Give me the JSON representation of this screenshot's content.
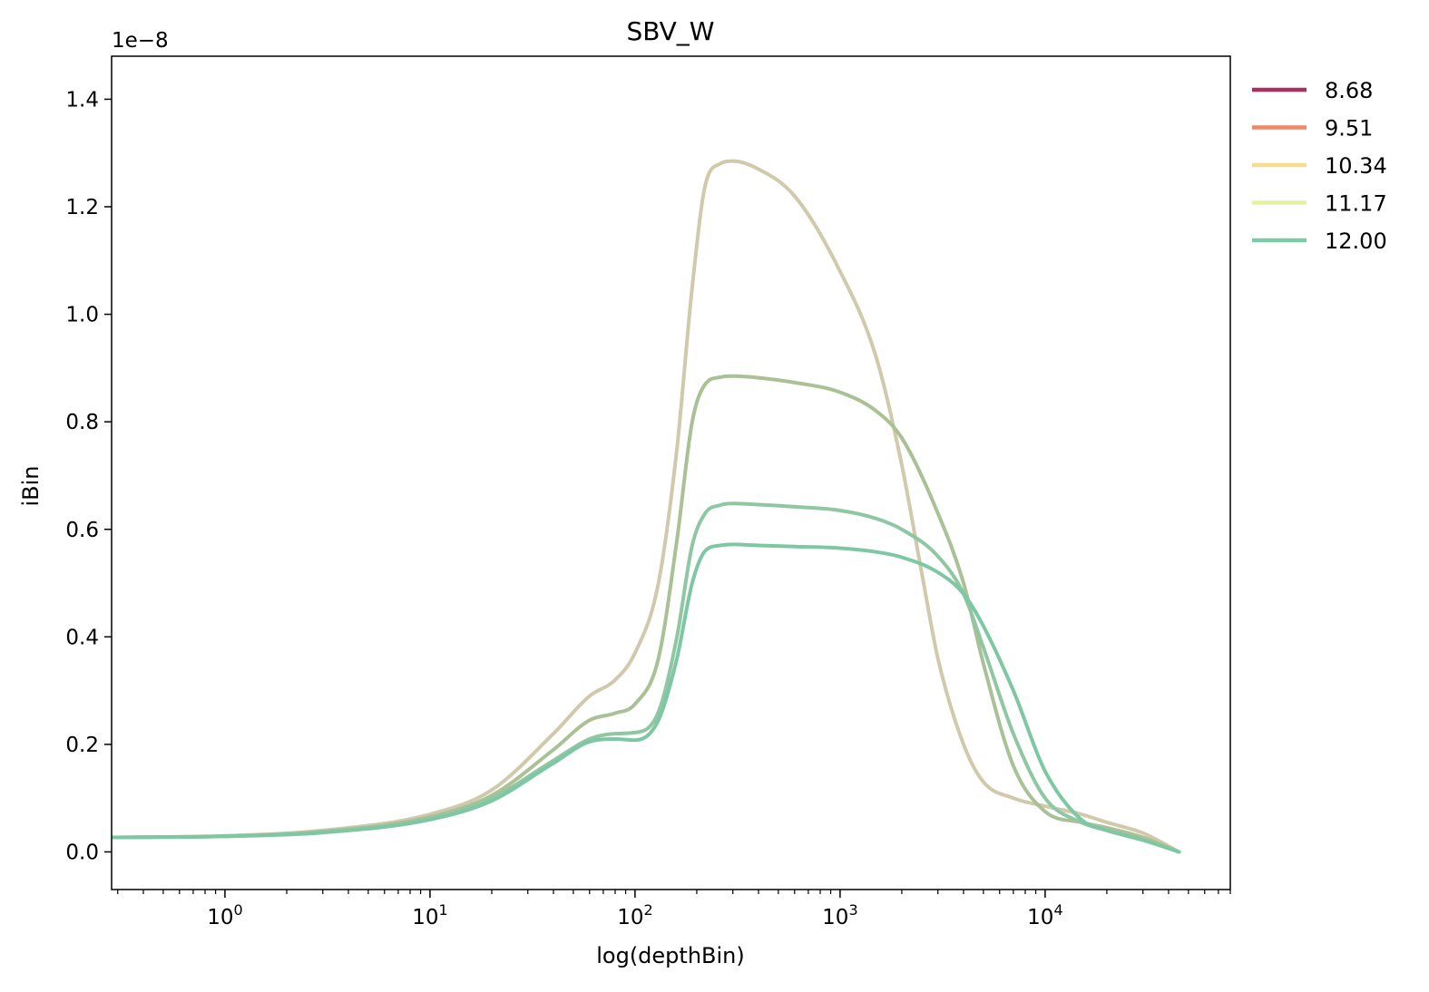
{
  "chart_data": {
    "type": "line",
    "title": "SBV_W",
    "xlabel": "log(depthBin)",
    "ylabel": "iBin",
    "offset_label": "1e−8",
    "x_scale": "log",
    "xlim": [
      0.28,
      80000
    ],
    "ylim": [
      -0.07,
      1.48
    ],
    "y_ticks": [
      {
        "value": 0.0,
        "label": "0.0"
      },
      {
        "value": 0.2,
        "label": "0.2"
      },
      {
        "value": 0.4,
        "label": "0.4"
      },
      {
        "value": 0.6,
        "label": "0.6"
      },
      {
        "value": 0.8,
        "label": "0.8"
      },
      {
        "value": 1.0,
        "label": "1.0"
      },
      {
        "value": 1.2,
        "label": "1.2"
      },
      {
        "value": 1.4,
        "label": "1.4"
      }
    ],
    "x_ticks": [
      {
        "value": 1,
        "base": "10",
        "exp": "0"
      },
      {
        "value": 10,
        "base": "10",
        "exp": "1"
      },
      {
        "value": 100,
        "base": "10",
        "exp": "2"
      },
      {
        "value": 1000,
        "base": "10",
        "exp": "3"
      },
      {
        "value": 10000,
        "base": "10",
        "exp": "4"
      }
    ],
    "legend_position": "outside-right-top",
    "legend": [
      {
        "label": "8.68",
        "color": "#a8325e"
      },
      {
        "label": "9.51",
        "color": "#ee8866"
      },
      {
        "label": "10.34",
        "color": "#f5dd90"
      },
      {
        "label": "11.17",
        "color": "#e6f0a0"
      },
      {
        "label": "12.00",
        "color": "#7dc9a8"
      }
    ],
    "series": [
      {
        "color": "#d0c9ab",
        "x": [
          0.28,
          1,
          3,
          10,
          20,
          40,
          60,
          80,
          100,
          130,
          160,
          190,
          220,
          260,
          300,
          400,
          600,
          1000,
          1500,
          2000,
          2500,
          3000,
          4000,
          5000,
          7000,
          10000,
          15000,
          20000,
          30000,
          45000
        ],
        "y": [
          0.027,
          0.03,
          0.04,
          0.07,
          0.115,
          0.22,
          0.29,
          0.32,
          0.37,
          0.5,
          0.75,
          1.05,
          1.24,
          1.28,
          1.285,
          1.27,
          1.22,
          1.08,
          0.92,
          0.72,
          0.52,
          0.36,
          0.2,
          0.13,
          0.1,
          0.085,
          0.07,
          0.055,
          0.035,
          0.0
        ]
      },
      {
        "color": "#a9c195",
        "x": [
          0.28,
          1,
          3,
          10,
          20,
          40,
          60,
          80,
          100,
          130,
          160,
          190,
          220,
          260,
          300,
          400,
          600,
          1000,
          1500,
          2000,
          3000,
          4000,
          5000,
          7000,
          10000,
          15000,
          20000,
          30000,
          45000
        ],
        "y": [
          0.027,
          0.029,
          0.038,
          0.065,
          0.105,
          0.19,
          0.245,
          0.258,
          0.275,
          0.36,
          0.58,
          0.8,
          0.87,
          0.883,
          0.885,
          0.882,
          0.873,
          0.855,
          0.82,
          0.77,
          0.63,
          0.5,
          0.35,
          0.16,
          0.075,
          0.055,
          0.045,
          0.027,
          0.0
        ]
      },
      {
        "color": "#8fc7a3",
        "x": [
          0.28,
          1,
          3,
          10,
          20,
          40,
          60,
          80,
          100,
          130,
          160,
          190,
          220,
          260,
          300,
          400,
          600,
          1000,
          1500,
          2000,
          3000,
          4000,
          5000,
          7000,
          10000,
          15000,
          20000,
          30000,
          45000
        ],
        "y": [
          0.027,
          0.029,
          0.037,
          0.062,
          0.1,
          0.17,
          0.21,
          0.22,
          0.222,
          0.26,
          0.4,
          0.57,
          0.63,
          0.645,
          0.648,
          0.646,
          0.642,
          0.635,
          0.62,
          0.6,
          0.55,
          0.48,
          0.38,
          0.22,
          0.1,
          0.055,
          0.04,
          0.022,
          0.0
        ]
      },
      {
        "color": "#7ec7a4",
        "x": [
          0.28,
          1,
          3,
          10,
          20,
          40,
          60,
          80,
          100,
          130,
          160,
          190,
          220,
          260,
          300,
          400,
          600,
          1000,
          1500,
          2000,
          3000,
          4000,
          5000,
          7000,
          10000,
          15000,
          20000,
          30000,
          45000
        ],
        "y": [
          0.027,
          0.029,
          0.036,
          0.06,
          0.095,
          0.165,
          0.205,
          0.21,
          0.208,
          0.245,
          0.36,
          0.5,
          0.56,
          0.57,
          0.572,
          0.57,
          0.568,
          0.565,
          0.558,
          0.548,
          0.52,
          0.48,
          0.42,
          0.3,
          0.15,
          0.06,
          0.04,
          0.022,
          0.0
        ]
      }
    ]
  }
}
